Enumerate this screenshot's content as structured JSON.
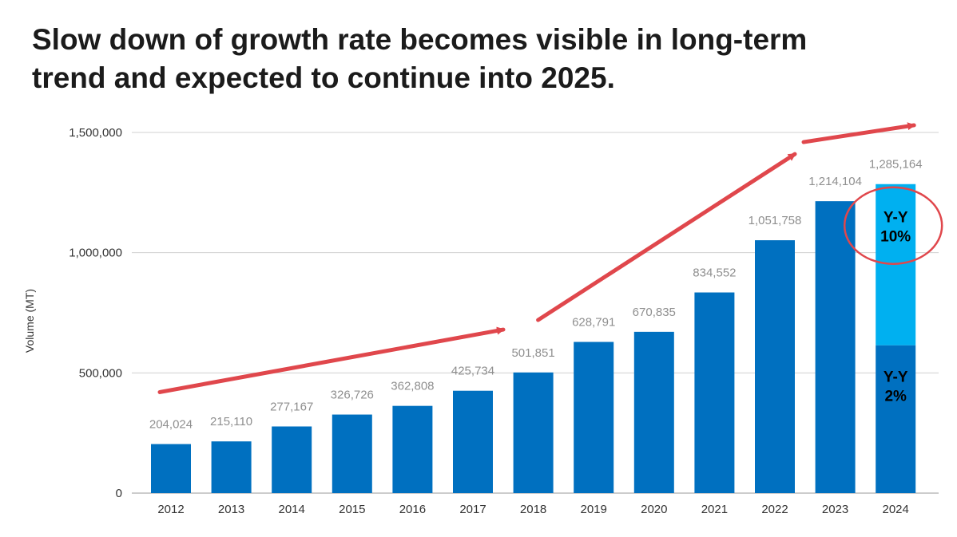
{
  "title_lines": [
    "Slow down of growth rate becomes visible in long-term",
    "trend and expected to continue into 2025."
  ],
  "colors": {
    "bar": "#0070c0",
    "bar_highlight": "#00b0f0",
    "arrow": "#e0474c",
    "circle": "#e0474c",
    "grid": "#d0d0d0"
  },
  "chart_data": {
    "type": "bar",
    "title": "Slow down of growth rate becomes visible in long-term trend and expected to continue into 2025.",
    "xlabel": "",
    "ylabel": "Volume (MT)",
    "ylim": [
      0,
      1500000
    ],
    "yticks": [
      0,
      500000,
      1000000,
      1500000
    ],
    "ytick_labels": [
      "0",
      "500,000",
      "1,000,000",
      "1,500,000"
    ],
    "grid": true,
    "categories": [
      "2012",
      "2013",
      "2014",
      "2015",
      "2016",
      "2017",
      "2018",
      "2019",
      "2020",
      "2021",
      "2022",
      "2023",
      "2024"
    ],
    "values": [
      204024,
      215110,
      277167,
      326726,
      362808,
      425734,
      501851,
      628791,
      670835,
      834552,
      1051758,
      1214104,
      1285164
    ],
    "value_labels": [
      "204,024",
      "215,110",
      "277,167",
      "326,726",
      "362,808",
      "425,734",
      "501,851",
      "628,791",
      "670,835",
      "834,552",
      "1,051,758",
      "1,214,104",
      "1,285,164"
    ],
    "stacked_last_bar": {
      "category": "2024",
      "lower_value": 615000,
      "upper_value": 670164
    },
    "annotations": [
      {
        "lines": [
          "Y-Y",
          "10%"
        ],
        "target": "2024-upper",
        "circled": true
      },
      {
        "lines": [
          "Y-Y",
          "2%"
        ],
        "target": "2024-lower",
        "circled": false
      }
    ],
    "trend_arrows": [
      {
        "from": [
          "2012",
          420000
        ],
        "to": [
          "2017",
          680000
        ]
      },
      {
        "from": [
          "2018",
          720000
        ],
        "to": [
          "2023",
          1410000
        ]
      },
      {
        "from": [
          "2023",
          1460000
        ],
        "to": [
          "2024+",
          1530000
        ]
      }
    ]
  }
}
